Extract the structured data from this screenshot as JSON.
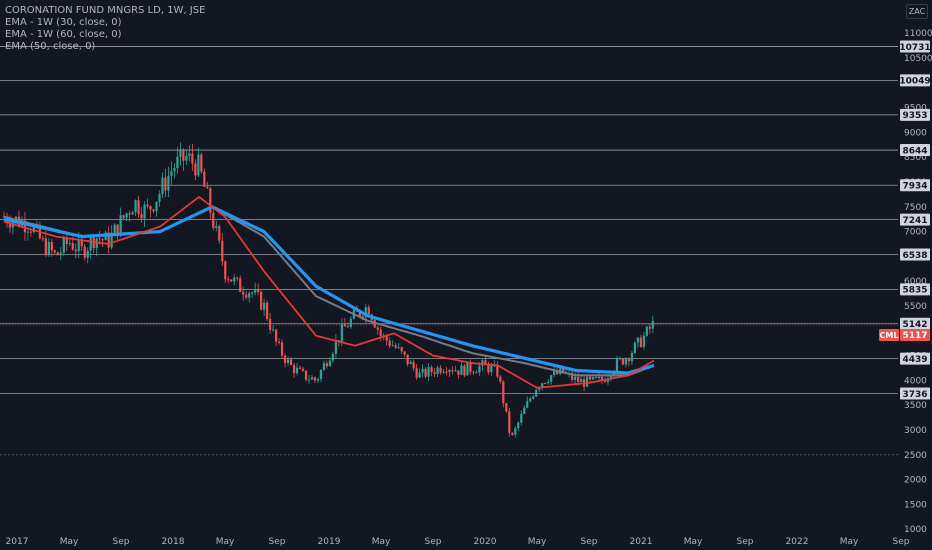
{
  "legend": {
    "symbol": "CORONATION FUND MNGRS LD, 1W, JSE",
    "ema1": "EMA - 1W (30, close, 0)",
    "ema2": "EMA - 1W (60, close, 0)",
    "ema3": "EMA (50, close, 0)"
  },
  "currency": "ZAC",
  "colors": {
    "background": "#131722",
    "up": "#26a69a",
    "down": "#ef5350",
    "ema30": "#e53935",
    "ema60": "#787b86",
    "ema50": "#2196f3",
    "level_line": "#b2b5be",
    "price_tag": "#ef5350"
  },
  "chart_data": {
    "type": "candlestick",
    "ylim": [
      1000,
      11300
    ],
    "y_ticks": [
      1000,
      1500,
      2000,
      2500,
      3000,
      3500,
      4000,
      4500,
      5000,
      5500,
      6000,
      6500,
      7000,
      7500,
      8000,
      8500,
      9000,
      9500,
      10500,
      11000
    ],
    "x_ticks": [
      "2017",
      "May",
      "Sep",
      "2018",
      "May",
      "Sep",
      "2019",
      "May",
      "Sep",
      "2020",
      "May",
      "Sep",
      "2021",
      "May",
      "Sep",
      "2022",
      "May",
      "Sep"
    ],
    "x_tick_dates": [
      "2017-01",
      "2017-05",
      "2017-09",
      "2018-01",
      "2018-05",
      "2018-09",
      "2019-01",
      "2019-05",
      "2019-09",
      "2020-01",
      "2020-05",
      "2020-09",
      "2021-01",
      "2021-05",
      "2021-09",
      "2022-01",
      "2022-05",
      "2022-09"
    ],
    "levels": [
      10731,
      10049,
      9353,
      8644,
      7934,
      7241,
      6538,
      5835,
      5142,
      4439,
      3736
    ],
    "dashed_levels": [
      2500
    ],
    "symbol_tag": "CML",
    "last_price": 5117,
    "price_path": [
      [
        "2016-12",
        7300
      ],
      [
        "2017-02",
        7150
      ],
      [
        "2017-03",
        6750
      ],
      [
        "2017-04",
        6500
      ],
      [
        "2017-05",
        6800
      ],
      [
        "2017-06",
        6600
      ],
      [
        "2017-07",
        6900
      ],
      [
        "2017-08",
        6800
      ],
      [
        "2017-09",
        7200
      ],
      [
        "2017-10",
        7600
      ],
      [
        "2017-11",
        7400
      ],
      [
        "2017-12",
        7800
      ],
      [
        "2018-01",
        8300
      ],
      [
        "2018-02",
        8500
      ],
      [
        "2018-03",
        8300
      ],
      [
        "2018-04",
        7300
      ],
      [
        "2018-05",
        6200
      ],
      [
        "2018-06",
        5900
      ],
      [
        "2018-07",
        5800
      ],
      [
        "2018-08",
        5500
      ],
      [
        "2018-09",
        4700
      ],
      [
        "2018-10",
        4300
      ],
      [
        "2018-11",
        4100
      ],
      [
        "2018-12",
        4000
      ],
      [
        "2019-01",
        4500
      ],
      [
        "2019-02",
        5000
      ],
      [
        "2019-03",
        5300
      ],
      [
        "2019-04",
        5500
      ],
      [
        "2019-05",
        4900
      ],
      [
        "2019-06",
        4700
      ],
      [
        "2019-07",
        4400
      ],
      [
        "2019-08",
        4100
      ],
      [
        "2019-09",
        4200
      ],
      [
        "2019-10",
        4300
      ],
      [
        "2019-11",
        4200
      ],
      [
        "2019-12",
        4250
      ],
      [
        "2020-01",
        4300
      ],
      [
        "2020-02",
        4150
      ],
      [
        "2020-03",
        2800
      ],
      [
        "2020-04",
        3400
      ],
      [
        "2020-05",
        3900
      ],
      [
        "2020-06",
        4100
      ],
      [
        "2020-07",
        4150
      ],
      [
        "2020-08",
        4000
      ],
      [
        "2020-09",
        3950
      ],
      [
        "2020-10",
        4000
      ],
      [
        "2020-11",
        4300
      ],
      [
        "2020-12",
        4500
      ],
      [
        "2021-01",
        4800
      ],
      [
        "2021-02",
        5150
      ]
    ],
    "ema30_path": [
      [
        "2016-12",
        7200
      ],
      [
        "2017-04",
        6900
      ],
      [
        "2017-08",
        6750
      ],
      [
        "2017-12",
        7100
      ],
      [
        "2018-03",
        7700
      ],
      [
        "2018-05",
        7300
      ],
      [
        "2018-08",
        6200
      ],
      [
        "2018-12",
        4900
      ],
      [
        "2019-03",
        4700
      ],
      [
        "2019-06",
        4950
      ],
      [
        "2019-09",
        4500
      ],
      [
        "2019-12",
        4350
      ],
      [
        "2020-02",
        4300
      ],
      [
        "2020-05",
        3850
      ],
      [
        "2020-09",
        3950
      ],
      [
        "2020-12",
        4100
      ],
      [
        "2021-02",
        4400
      ]
    ],
    "ema60_path": [
      [
        "2016-12",
        7300
      ],
      [
        "2017-06",
        6900
      ],
      [
        "2017-12",
        7000
      ],
      [
        "2018-04",
        7500
      ],
      [
        "2018-08",
        6900
      ],
      [
        "2018-12",
        5700
      ],
      [
        "2019-04",
        5200
      ],
      [
        "2019-08",
        4900
      ],
      [
        "2019-12",
        4550
      ],
      [
        "2020-04",
        4350
      ],
      [
        "2020-08",
        4100
      ],
      [
        "2020-12",
        4100
      ],
      [
        "2021-02",
        4300
      ]
    ],
    "ema50_path": [
      [
        "2016-12",
        7250
      ],
      [
        "2017-06",
        6900
      ],
      [
        "2017-12",
        7000
      ],
      [
        "2018-04",
        7500
      ],
      [
        "2018-08",
        7000
      ],
      [
        "2018-12",
        5900
      ],
      [
        "2019-04",
        5300
      ],
      [
        "2019-08",
        5000
      ],
      [
        "2019-12",
        4700
      ],
      [
        "2020-04",
        4450
      ],
      [
        "2020-08",
        4200
      ],
      [
        "2020-12",
        4150
      ],
      [
        "2021-02",
        4300
      ]
    ]
  }
}
